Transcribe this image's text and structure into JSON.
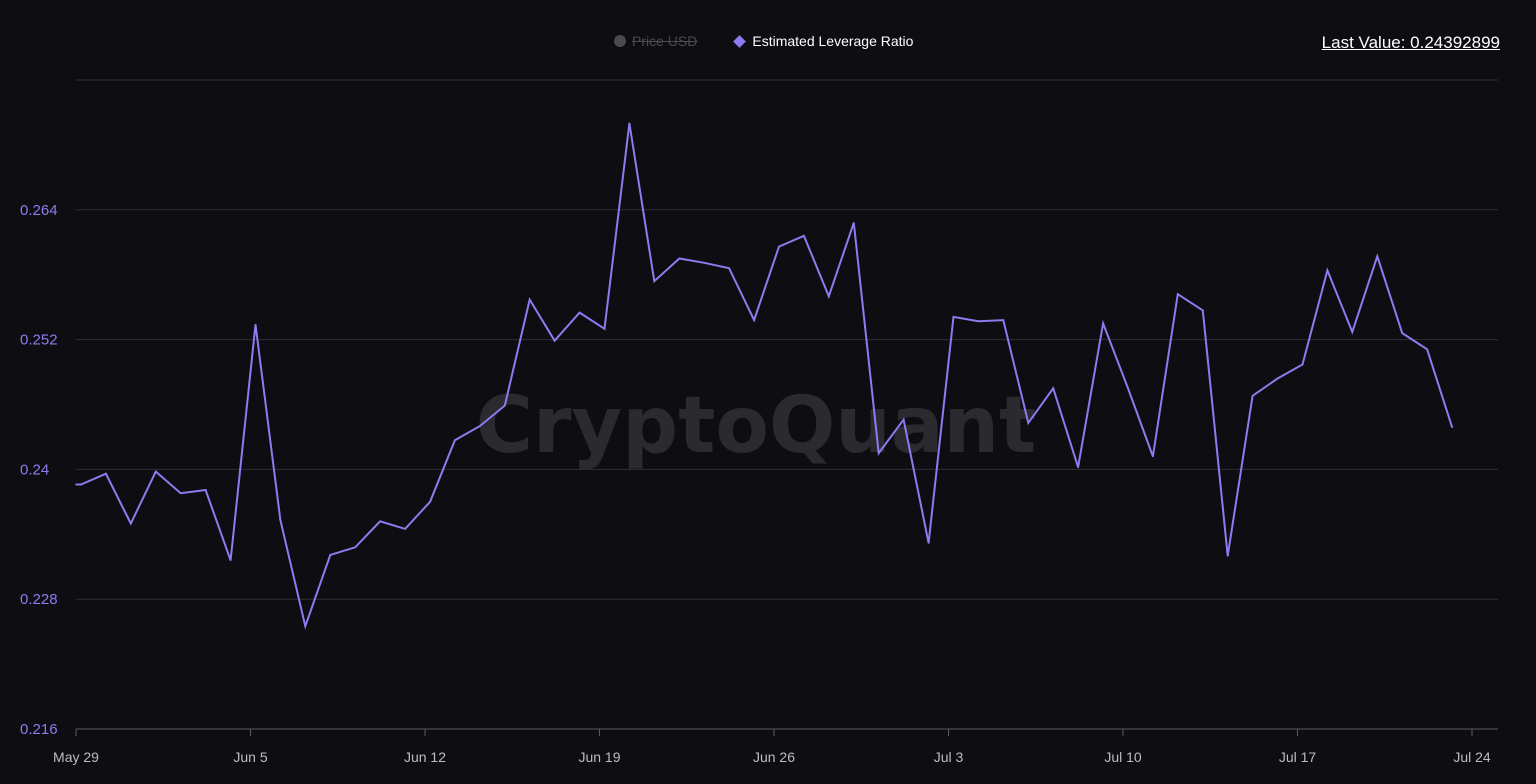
{
  "legend": {
    "items": [
      {
        "label": "Price USD",
        "enabled": false,
        "icon": "circle-icon"
      },
      {
        "label": "Estimated Leverage Ratio",
        "enabled": true,
        "icon": "diamond-icon"
      }
    ]
  },
  "last_value": "Last Value: 0.24392899",
  "watermark": "CryptoQuant",
  "colors": {
    "background": "#0e0e12",
    "series": "#8b7cf0",
    "grid": "#2e2e34",
    "disabled": "#4a4a50"
  },
  "chart_data": {
    "type": "line",
    "title": "",
    "xlabel": "",
    "ylabel": "",
    "ylim": [
      0.216,
      0.276
    ],
    "yticks": [
      0.216,
      0.228,
      0.24,
      0.252,
      0.264
    ],
    "ytick_labels": [
      "0.216",
      "0.228",
      "0.24",
      "0.252",
      "0.264"
    ],
    "x_start": "May 29",
    "x_range_days": [
      0,
      57
    ],
    "xticks": [
      {
        "day": 0,
        "label": "May 29"
      },
      {
        "day": 7,
        "label": "Jun 5"
      },
      {
        "day": 14,
        "label": "Jun 12"
      },
      {
        "day": 21,
        "label": "Jun 19"
      },
      {
        "day": 28,
        "label": "Jun 26"
      },
      {
        "day": 35,
        "label": "Jul 3"
      },
      {
        "day": 42,
        "label": "Jul 10"
      },
      {
        "day": 49,
        "label": "Jul 17"
      },
      {
        "day": 56,
        "label": "Jul 24"
      }
    ],
    "grid": true,
    "legend_position": "top-center",
    "series": [
      {
        "name": "Estimated Leverage Ratio",
        "color": "#8b7cf0",
        "x": [
          0,
          0.2,
          1.2,
          2.2,
          3.2,
          4.2,
          5.2,
          6.2,
          7.2,
          8.2,
          9.2,
          10.2,
          11.2,
          12.2,
          13.2,
          14.2,
          15.2,
          16.2,
          17.2,
          18.2,
          19.2,
          20.2,
          21.2,
          22.2,
          23.2,
          24.2,
          25.2,
          26.2,
          27.2,
          28.2,
          29.2,
          30.2,
          31.2,
          32.2,
          33.2,
          34.2,
          35.2,
          36.2,
          37.2,
          38.2,
          39.2,
          40.2,
          41.2,
          42.2,
          43.2,
          44.2,
          45.2,
          46.2,
          47.2,
          48.2,
          49.2,
          50.2,
          51.2,
          52.2,
          53.2,
          54.2,
          55.2
        ],
        "values": [
          0.2386,
          0.2386,
          0.2396,
          0.235,
          0.2398,
          0.2378,
          0.2381,
          0.2316,
          0.2534,
          0.2353,
          0.2255,
          0.2321,
          0.2328,
          0.2352,
          0.2345,
          0.237,
          0.2427,
          0.244,
          0.2459,
          0.2557,
          0.2519,
          0.2545,
          0.253,
          0.272,
          0.2574,
          0.2595,
          0.2591,
          0.2586,
          0.2538,
          0.2606,
          0.2616,
          0.256,
          0.2628,
          0.2415,
          0.2446,
          0.2332,
          0.2541,
          0.2537,
          0.2538,
          0.2443,
          0.2475,
          0.2402,
          0.2535,
          0.2475,
          0.2412,
          0.2562,
          0.2547,
          0.232,
          0.2468,
          0.2484,
          0.2497,
          0.2584,
          0.2527,
          0.2597,
          0.2526,
          0.2511,
          0.2439
        ]
      }
    ]
  }
}
